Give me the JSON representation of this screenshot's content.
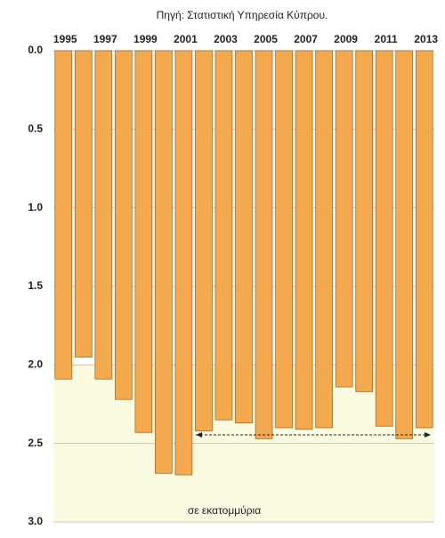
{
  "chart_data": {
    "type": "bar",
    "source": "Πηγή: Στατιστική Υπηρεσία Κύπρου.",
    "unit_label": "σε εκατομμύρια",
    "categories": [
      "1995",
      null,
      "1997",
      null,
      "1999",
      null,
      "2001",
      null,
      "2003",
      null,
      "2005",
      null,
      "2007",
      null,
      "2009",
      null,
      "2011",
      null,
      "2013"
    ],
    "values": [
      2.09,
      1.95,
      2.09,
      2.22,
      2.43,
      2.69,
      2.7,
      2.42,
      2.35,
      2.37,
      2.47,
      2.4,
      2.41,
      2.4,
      2.14,
      2.17,
      2.39,
      2.47,
      2.4
    ],
    "color": "#f5a94e",
    "ylim": [
      0,
      3
    ],
    "inverted": true,
    "yticks": [
      {
        "value": 0,
        "label": "0.0"
      },
      {
        "value": 0.5,
        "label": "0.5"
      },
      {
        "value": 1,
        "label": "1.0"
      },
      {
        "value": 1.5,
        "label": "1.5"
      },
      {
        "value": 2,
        "label": "2.0"
      },
      {
        "value": 2.5,
        "label": "2.5"
      },
      {
        "value": 3,
        "label": "3.0"
      }
    ],
    "grid": true
  }
}
